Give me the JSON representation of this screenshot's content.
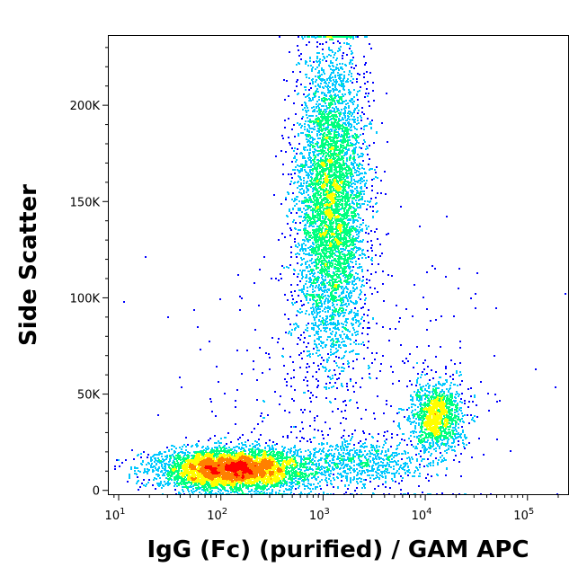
{
  "chart_data": {
    "type": "scatter",
    "style": "density-pseudocolor",
    "title": "",
    "xlabel": "IgG (Fc) (purified) / GAM APC",
    "ylabel": "Side Scatter",
    "x_scale": "log",
    "y_scale": "linear",
    "xlim": [
      8,
      250000
    ],
    "ylim": [
      -2000,
      236000
    ],
    "x_ticks": [
      {
        "value": 10,
        "base": "10",
        "exp": "1"
      },
      {
        "value": 100,
        "base": "10",
        "exp": "2"
      },
      {
        "value": 1000,
        "base": "10",
        "exp": "3"
      },
      {
        "value": 10000,
        "base": "10",
        "exp": "4"
      },
      {
        "value": 100000,
        "base": "10",
        "exp": "5"
      }
    ],
    "y_ticks": [
      {
        "value": 0,
        "label": "0"
      },
      {
        "value": 50000,
        "label": "50K"
      },
      {
        "value": 100000,
        "label": "100K"
      },
      {
        "value": 150000,
        "label": "150K"
      },
      {
        "value": 200000,
        "label": "200K"
      }
    ],
    "populations": [
      {
        "x_center": 1200,
        "x_log_spread": 0.17,
        "y_center": 150000,
        "y_spread": 40000,
        "count": 5200
      },
      {
        "x_center": 130,
        "x_log_spread": 0.38,
        "y_center": 11000,
        "y_spread": 5500,
        "count": 4800
      },
      {
        "x_center": 13000,
        "x_log_spread": 0.13,
        "y_center": 38000,
        "y_spread": 9500,
        "count": 1300
      },
      {
        "x_center": 2500,
        "x_log_spread": 0.3,
        "y_center": 15000,
        "y_spread": 6000,
        "count": 600
      },
      {
        "x_center": 1500,
        "x_log_spread": 0.7,
        "y_center": 50000,
        "y_spread": 40000,
        "count": 450
      }
    ],
    "grid": false,
    "legend": "none",
    "colors": [
      "#0000ff",
      "#00c8ff",
      "#00ff80",
      "#ffff00",
      "#ff8000",
      "#ff0000"
    ]
  }
}
